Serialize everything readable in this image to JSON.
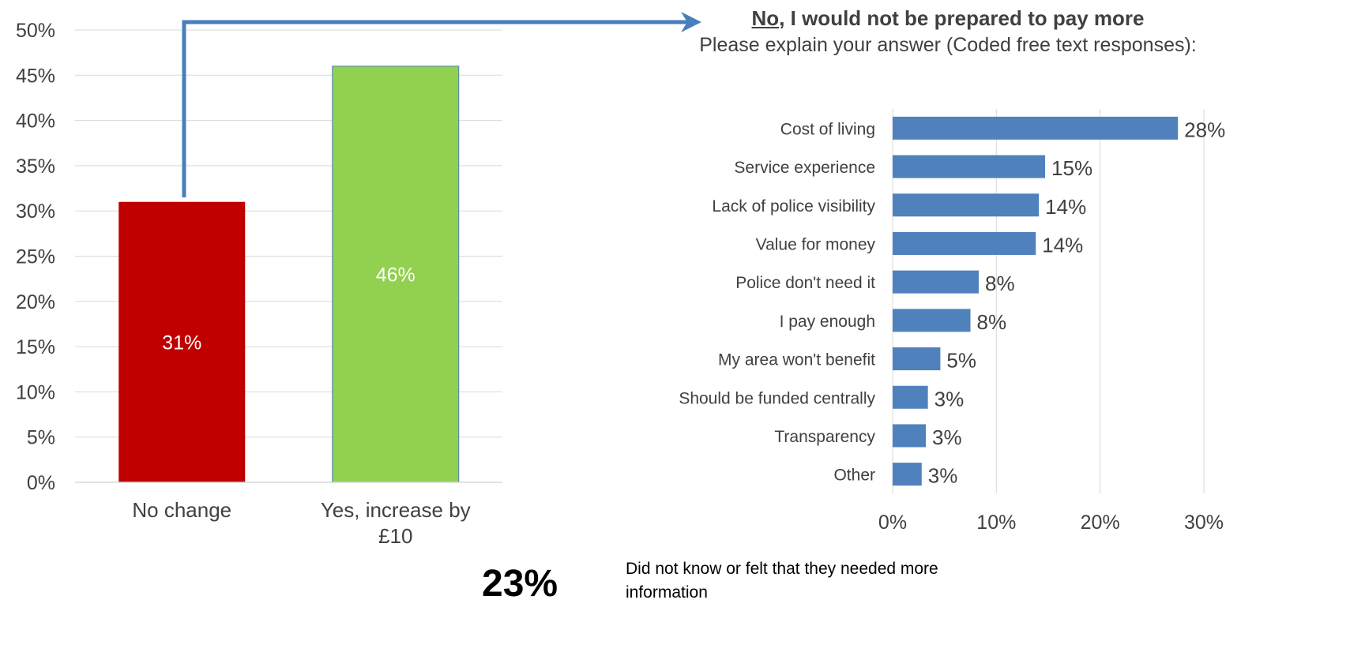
{
  "chart_data": [
    {
      "type": "bar",
      "categories": [
        "No change",
        "Yes, increase by £10"
      ],
      "category_lines": [
        [
          "No change"
        ],
        [
          "Yes, increase by",
          "£10"
        ]
      ],
      "values": [
        31,
        46
      ],
      "data_labels": [
        "31%",
        "46%"
      ],
      "colors": [
        "#c00000",
        "#92d050"
      ],
      "ylim": [
        0,
        50
      ],
      "yticks": [
        0,
        5,
        10,
        15,
        20,
        25,
        30,
        35,
        40,
        45,
        50
      ],
      "ytick_labels": [
        "0%",
        "5%",
        "10%",
        "15%",
        "20%",
        "25%",
        "30%",
        "35%",
        "40%",
        "45%",
        "50%"
      ],
      "grid": true
    },
    {
      "type": "bar",
      "orientation": "horizontal",
      "title_bold_underlined": "No",
      "title_bold_rest": ", I would not be prepared to pay more",
      "subtitle": "Please explain your answer (Coded free text responses):",
      "categories": [
        "Cost of living",
        "Service experience",
        "Lack of police visibility",
        "Value for money",
        "Police don't need it",
        "I pay enough",
        "My area won't benefit",
        "Should be funded centrally",
        "Transparency",
        "Other"
      ],
      "values": [
        27.5,
        14.7,
        14.1,
        13.8,
        8.3,
        7.5,
        4.6,
        3.4,
        3.2,
        2.8
      ],
      "data_labels": [
        "28%",
        "15%",
        "14%",
        "14%",
        "8%",
        "8%",
        "5%",
        "3%",
        "3%",
        "3%"
      ],
      "xlim": [
        0,
        30
      ],
      "xticks": [
        0,
        10,
        20,
        30
      ],
      "xtick_labels": [
        "0%",
        "10%",
        "20%",
        "30%"
      ],
      "color": "#4f81bd",
      "grid": true
    }
  ],
  "footer": {
    "percent": "23%",
    "text": "Did not know or felt that they needed more information"
  },
  "colors": {
    "arrow": "#4a7ebb",
    "grid": "#d9d9d9",
    "text": "#404040"
  }
}
